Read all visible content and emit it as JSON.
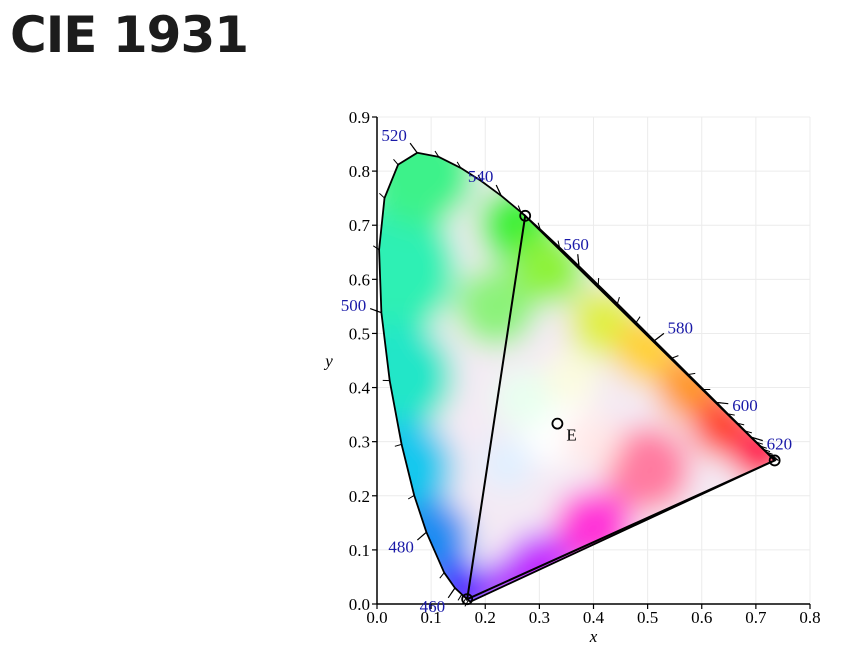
{
  "title": "CIE 1931",
  "chart_data": {
    "type": "scatter",
    "xlabel": "x",
    "ylabel": "y",
    "xlim": [
      0.0,
      0.8
    ],
    "ylim": [
      0.0,
      0.9
    ],
    "xticks": [
      "0.0",
      "0.1",
      "0.2",
      "0.3",
      "0.4",
      "0.5",
      "0.6",
      "0.7",
      "0.8"
    ],
    "yticks": [
      "0.0",
      "0.1",
      "0.2",
      "0.3",
      "0.4",
      "0.5",
      "0.6",
      "0.7",
      "0.8",
      "0.9"
    ],
    "spectral_locus": [
      [
        0.1741,
        0.005
      ],
      [
        0.1714,
        0.0051
      ],
      [
        0.1689,
        0.0069
      ],
      [
        0.1644,
        0.0109
      ],
      [
        0.1566,
        0.0177
      ],
      [
        0.144,
        0.0297
      ],
      [
        0.1241,
        0.0578
      ],
      [
        0.0913,
        0.1327
      ],
      [
        0.0687,
        0.2007
      ],
      [
        0.0454,
        0.295
      ],
      [
        0.0235,
        0.4127
      ],
      [
        0.0082,
        0.5384
      ],
      [
        0.0039,
        0.6548
      ],
      [
        0.0139,
        0.7502
      ],
      [
        0.0389,
        0.812
      ],
      [
        0.0743,
        0.8338
      ],
      [
        0.1142,
        0.8262
      ],
      [
        0.1547,
        0.8059
      ],
      [
        0.1929,
        0.7816
      ],
      [
        0.2296,
        0.7543
      ],
      [
        0.2658,
        0.7243
      ],
      [
        0.3016,
        0.6923
      ],
      [
        0.3373,
        0.6589
      ],
      [
        0.3731,
        0.6245
      ],
      [
        0.4087,
        0.5896
      ],
      [
        0.4441,
        0.5547
      ],
      [
        0.4788,
        0.5202
      ],
      [
        0.5125,
        0.4866
      ],
      [
        0.5448,
        0.4544
      ],
      [
        0.5752,
        0.4242
      ],
      [
        0.6029,
        0.3965
      ],
      [
        0.627,
        0.3725
      ],
      [
        0.6482,
        0.3514
      ],
      [
        0.6658,
        0.334
      ],
      [
        0.6801,
        0.3197
      ],
      [
        0.6915,
        0.3083
      ],
      [
        0.7006,
        0.2993
      ],
      [
        0.7079,
        0.292
      ],
      [
        0.714,
        0.2859
      ],
      [
        0.719,
        0.2809
      ],
      [
        0.723,
        0.277
      ],
      [
        0.726,
        0.274
      ],
      [
        0.7283,
        0.2717
      ],
      [
        0.73,
        0.27
      ],
      [
        0.7311,
        0.2689
      ],
      [
        0.732,
        0.268
      ],
      [
        0.7334,
        0.2666
      ],
      [
        0.7347,
        0.2653
      ]
    ],
    "wavelength_labels": [
      {
        "nm": "460",
        "x": 0.1441,
        "y": 0.0297
      },
      {
        "nm": "480",
        "x": 0.0913,
        "y": 0.1327
      },
      {
        "nm": "500",
        "x": 0.0082,
        "y": 0.5384
      },
      {
        "nm": "520",
        "x": 0.0743,
        "y": 0.8338
      },
      {
        "nm": "540",
        "x": 0.2296,
        "y": 0.7543
      },
      {
        "nm": "560",
        "x": 0.3731,
        "y": 0.6245
      },
      {
        "nm": "580",
        "x": 0.5125,
        "y": 0.4866
      },
      {
        "nm": "600",
        "x": 0.627,
        "y": 0.3725
      },
      {
        "nm": "620",
        "x": 0.6915,
        "y": 0.3083
      }
    ],
    "gamut_triangle": [
      {
        "name": "green",
        "x": 0.2738,
        "y": 0.7174
      },
      {
        "name": "red",
        "x": 0.7347,
        "y": 0.2653
      },
      {
        "name": "blue",
        "x": 0.1666,
        "y": 0.0089
      }
    ],
    "white_point": {
      "label": "E",
      "x": 0.3333,
      "y": 0.3333
    },
    "grid": true
  }
}
